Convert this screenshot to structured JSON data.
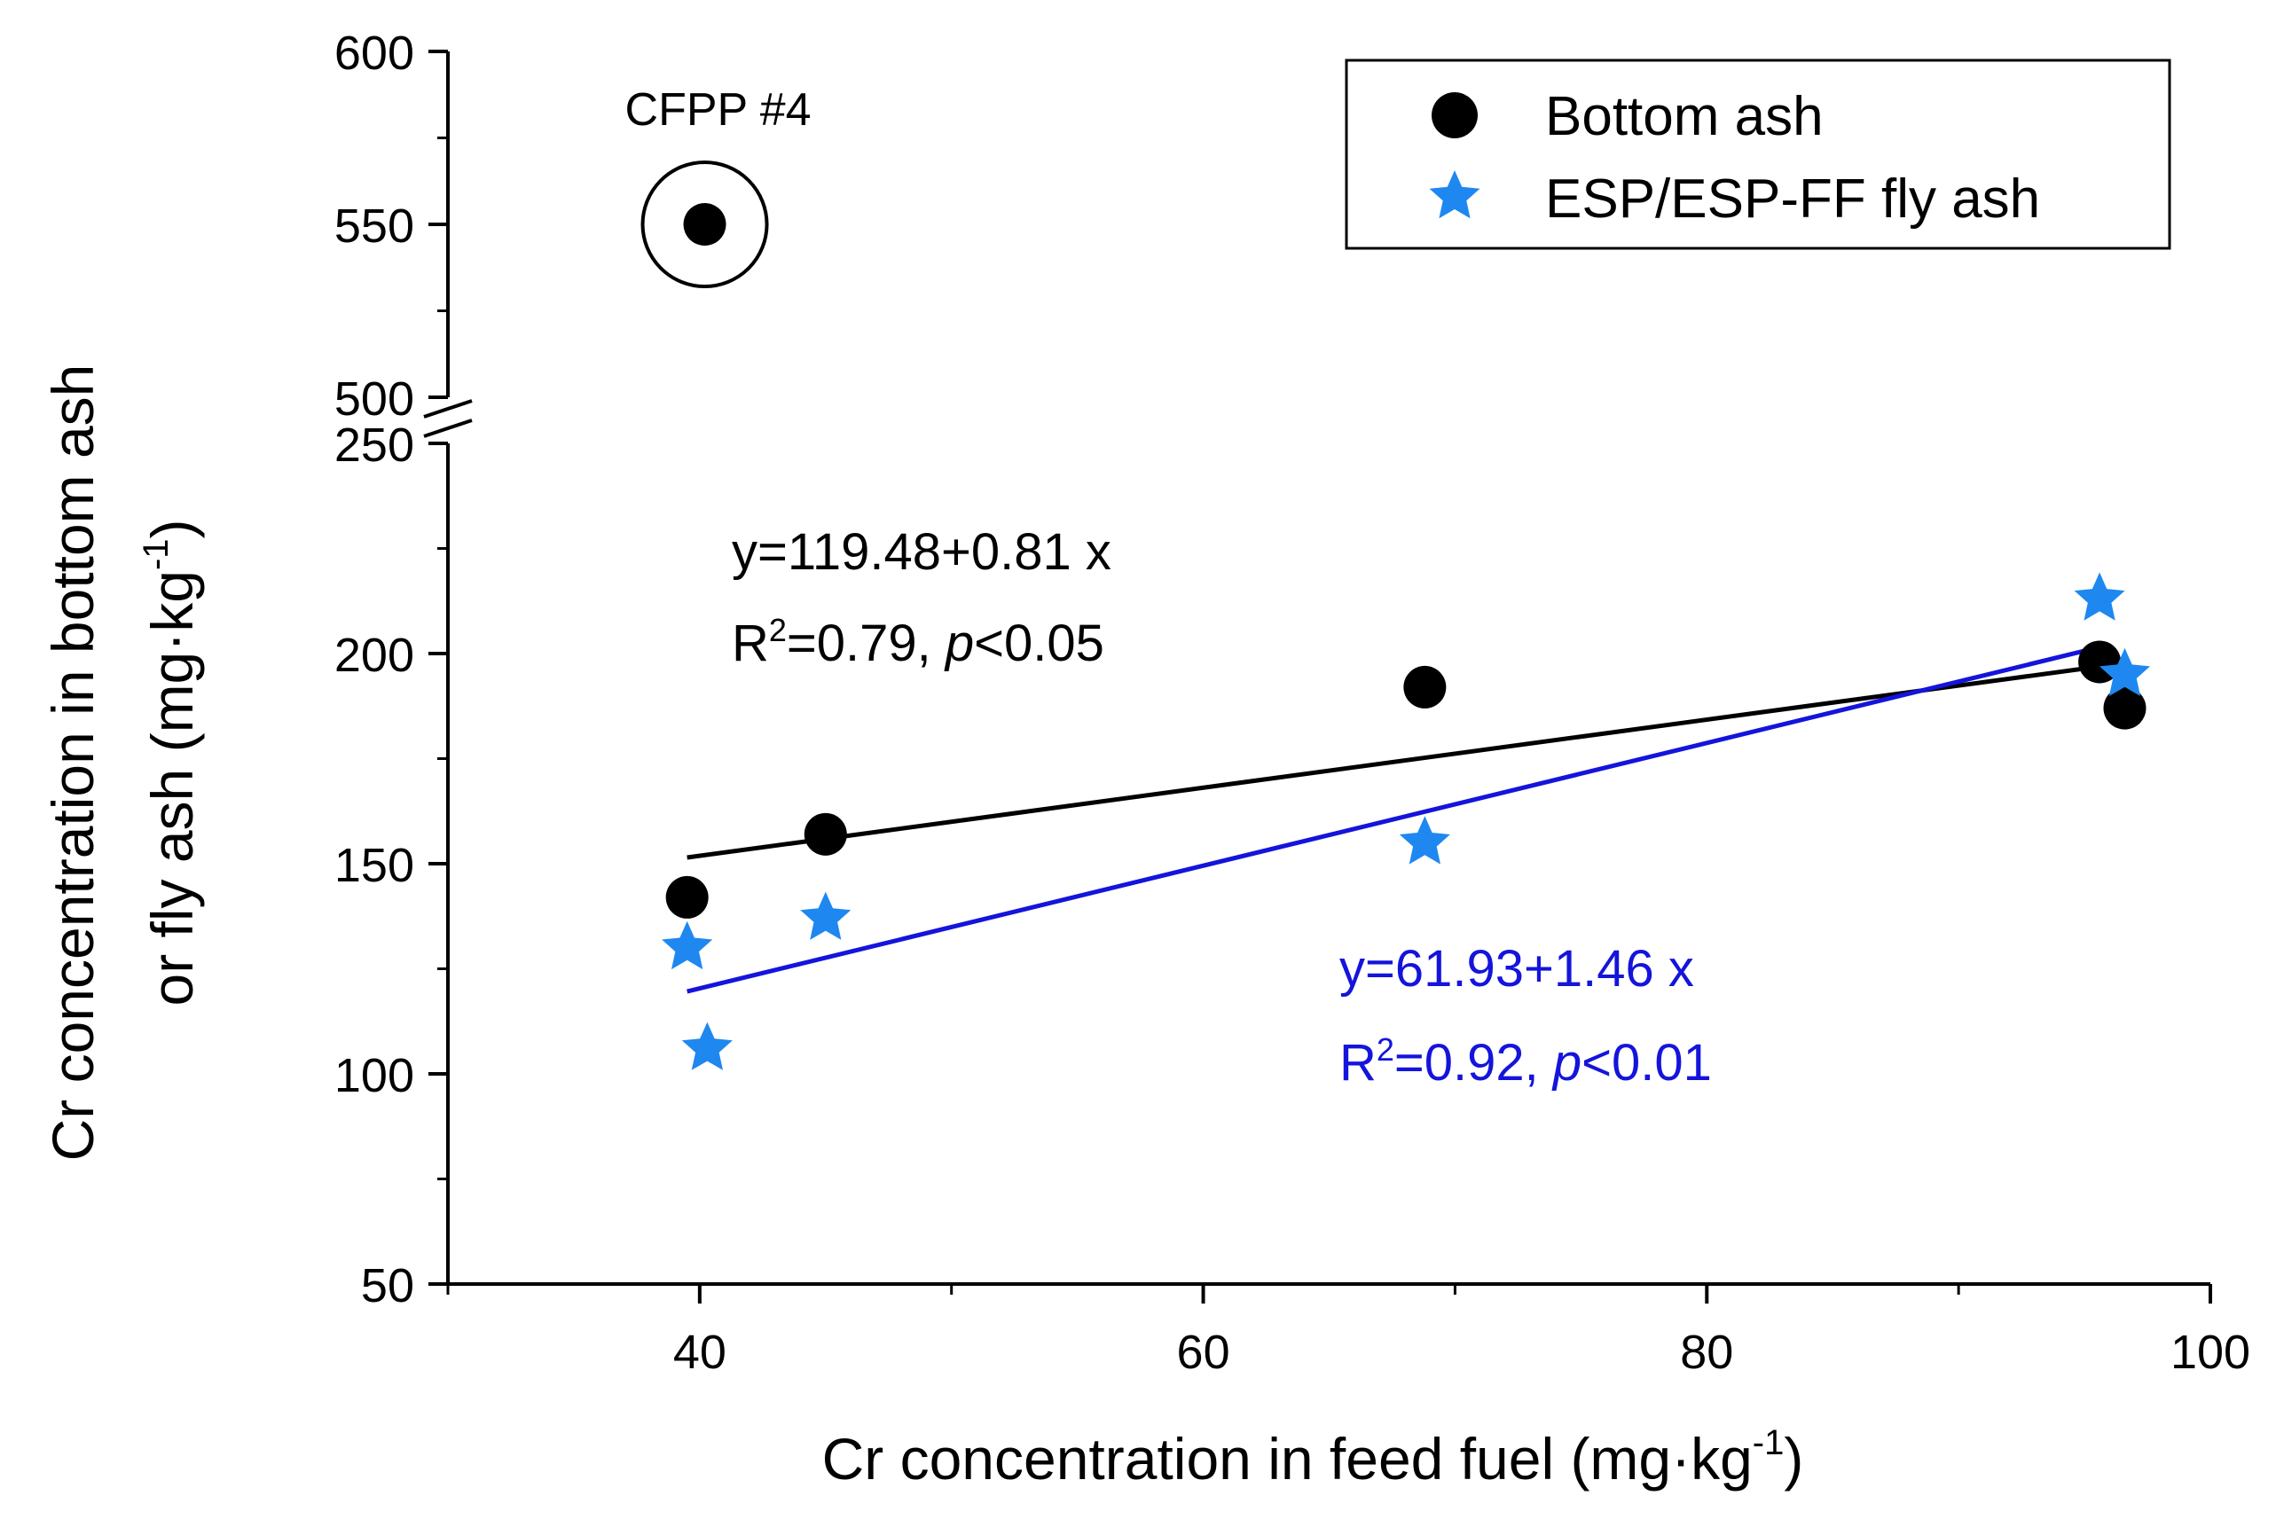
{
  "chart_data": {
    "type": "scatter",
    "xlabel": "Cr concentration in feed fuel  (mg·kg",
    "xlabel_sup": "-1",
    "xlabel_end": ")",
    "ylabel_line1": "Cr concentration in bottom ash",
    "ylabel_line2": "or fly ash (mg·kg",
    "ylabel_sup": "-1",
    "ylabel_end": ")",
    "xlim": [
      30,
      100
    ],
    "x_ticks": [
      40,
      60,
      80,
      100
    ],
    "x_tick_labels": [
      "40",
      "60",
      "80",
      "100"
    ],
    "y_axis_break": {
      "lower": 250,
      "upper": 500
    },
    "ylim_lower": [
      50,
      250
    ],
    "ylim_upper": [
      500,
      600
    ],
    "y_ticks": [
      50,
      100,
      150,
      200,
      250,
      500,
      550,
      600
    ],
    "y_tick_labels": [
      "50",
      "100",
      "150",
      "200",
      "250",
      "500",
      "550",
      "600"
    ],
    "legend_position": "top-right",
    "series": [
      {
        "name": "Bottom ash",
        "marker": "circle",
        "color": "#000000",
        "points": [
          {
            "x": 39.5,
            "y": 142
          },
          {
            "x": 45.0,
            "y": 157
          },
          {
            "x": 68.8,
            "y": 192
          },
          {
            "x": 95.6,
            "y": 198
          },
          {
            "x": 96.6,
            "y": 187
          },
          {
            "x": 40.2,
            "y": 550
          }
        ],
        "fit": {
          "intercept": 119.48,
          "slope": 0.81,
          "x_range": [
            39.5,
            96.6
          ],
          "line_color": "#000000",
          "equation": "y=119.48+0.81 x",
          "r_prefix": "R",
          "r_sup": "2",
          "r_value": "=0.79, ",
          "p_label": "p",
          "p_value": "<0.05"
        }
      },
      {
        "name": "ESP/ESP-FF fly ash",
        "marker": "star",
        "color": "#1e88f0",
        "points": [
          {
            "x": 39.5,
            "y": 130
          },
          {
            "x": 40.3,
            "y": 106
          },
          {
            "x": 45.0,
            "y": 137
          },
          {
            "x": 68.8,
            "y": 155
          },
          {
            "x": 95.6,
            "y": 213
          },
          {
            "x": 96.6,
            "y": 195
          }
        ],
        "fit": {
          "intercept": 61.93,
          "slope": 1.46,
          "x_range": [
            39.5,
            95.6
          ],
          "line_color": "#1414dc",
          "equation": "y=61.93+1.46 x",
          "r_prefix": "R",
          "r_sup": "2",
          "r_value": "=0.92, ",
          "p_label": "p",
          "p_value": "<0.01"
        }
      }
    ],
    "annotations": [
      {
        "text": "CFPP #4",
        "target_x": 40.2,
        "target_y": 550,
        "circled": true
      }
    ]
  }
}
